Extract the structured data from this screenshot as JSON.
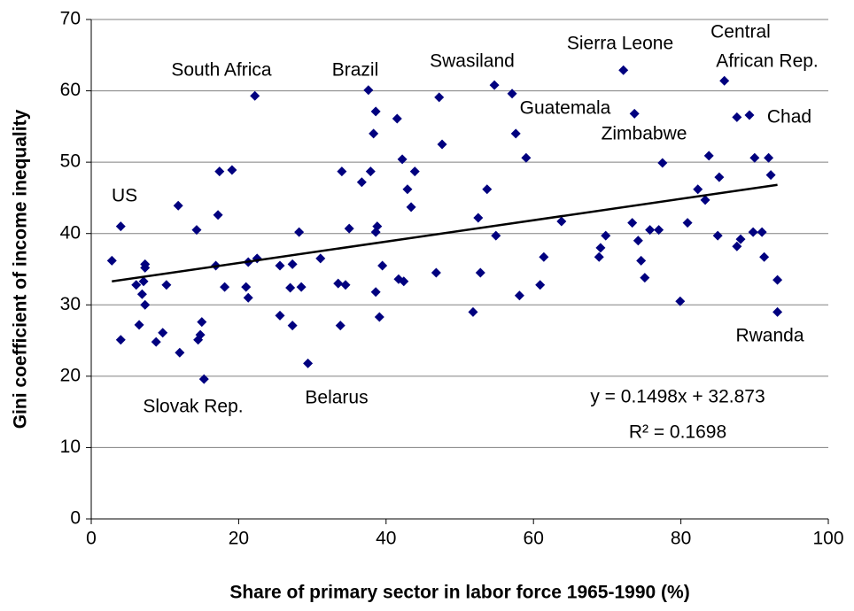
{
  "chart_data": {
    "type": "scatter",
    "xlabel": "Share of primary sector in labor force 1965-1990 (%)",
    "ylabel": "Gini coefficient of income inequality",
    "color": "#00007f",
    "grid": true,
    "xlim": [
      0,
      100
    ],
    "xticks": [
      0,
      20,
      40,
      60,
      80,
      100
    ],
    "ylim": [
      0,
      70
    ],
    "yticks": [
      0,
      10,
      20,
      30,
      40,
      50,
      60,
      70
    ],
    "x": [
      2.8,
      4.0,
      4.0,
      6.1,
      6.5,
      6.9,
      7.1,
      7.3,
      7.3,
      7.3,
      8.8,
      9.7,
      10.2,
      11.8,
      12.0,
      14.3,
      14.5,
      14.8,
      15.0,
      15.3,
      16.9,
      17.2,
      17.4,
      18.1,
      19.1,
      21.0,
      21.3,
      21.3,
      22.2,
      22.5,
      25.6,
      25.6,
      27.0,
      27.3,
      27.3,
      28.2,
      28.5,
      29.4,
      31.1,
      33.5,
      33.8,
      34.0,
      34.5,
      35.0,
      36.7,
      37.6,
      37.9,
      38.3,
      38.6,
      38.6,
      38.6,
      38.8,
      39.1,
      39.5,
      41.5,
      41.7,
      42.2,
      42.4,
      42.9,
      43.4,
      43.9,
      46.8,
      47.2,
      47.6,
      51.8,
      52.5,
      52.8,
      53.7,
      54.7,
      54.9,
      57.1,
      57.6,
      58.1,
      59.0,
      60.9,
      61.4,
      63.8,
      68.9,
      69.1,
      69.8,
      72.2,
      73.4,
      73.7,
      74.2,
      74.6,
      75.1,
      75.8,
      77.0,
      77.5,
      79.9,
      80.9,
      82.3,
      83.3,
      83.8,
      85.0,
      85.2,
      85.9,
      87.6,
      87.6,
      88.1,
      89.3,
      89.8,
      90.0,
      91.0,
      91.3,
      91.9,
      92.2,
      93.1,
      93.1
    ],
    "values": [
      36.2,
      41.0,
      25.1,
      32.8,
      27.2,
      31.5,
      33.3,
      35.7,
      35.2,
      30.0,
      24.8,
      26.1,
      32.8,
      43.9,
      23.3,
      40.5,
      25.1,
      25.8,
      27.6,
      19.6,
      35.5,
      42.6,
      48.7,
      32.5,
      48.9,
      32.5,
      31.0,
      36.0,
      59.3,
      36.5,
      35.5,
      28.5,
      32.4,
      35.7,
      27.1,
      40.2,
      32.5,
      21.8,
      36.5,
      33.0,
      27.1,
      48.7,
      32.8,
      40.7,
      47.2,
      60.1,
      48.7,
      54.0,
      57.1,
      40.2,
      31.8,
      41.0,
      28.3,
      35.5,
      56.1,
      33.6,
      50.4,
      33.3,
      46.2,
      43.7,
      48.7,
      34.5,
      59.1,
      52.5,
      29.0,
      42.2,
      34.5,
      46.2,
      60.8,
      39.7,
      59.6,
      54.0,
      31.3,
      50.6,
      32.8,
      36.7,
      41.7,
      36.7,
      38.0,
      39.7,
      62.9,
      41.5,
      56.8,
      39.0,
      36.2,
      33.8,
      40.5,
      40.5,
      49.9,
      30.5,
      41.5,
      46.2,
      44.7,
      50.9,
      39.7,
      47.9,
      61.4,
      56.3,
      38.2,
      39.2,
      56.6,
      40.2,
      50.6,
      40.2,
      36.7,
      50.6,
      48.2,
      33.5,
      29.0
    ],
    "trendline": {
      "slope": 0.1498,
      "intercept": 32.873
    },
    "annotations": [
      "US",
      "South Africa",
      "Brazil",
      "Swasiland",
      "Sierra Leone",
      "Central",
      "African Rep.",
      "Guatemala",
      "Zimbabwe",
      "Chad",
      "Rwanda",
      "Slovak Rep.",
      "Belarus",
      "y = 0.1498x + 32.873",
      "R² = 0.1698"
    ]
  }
}
